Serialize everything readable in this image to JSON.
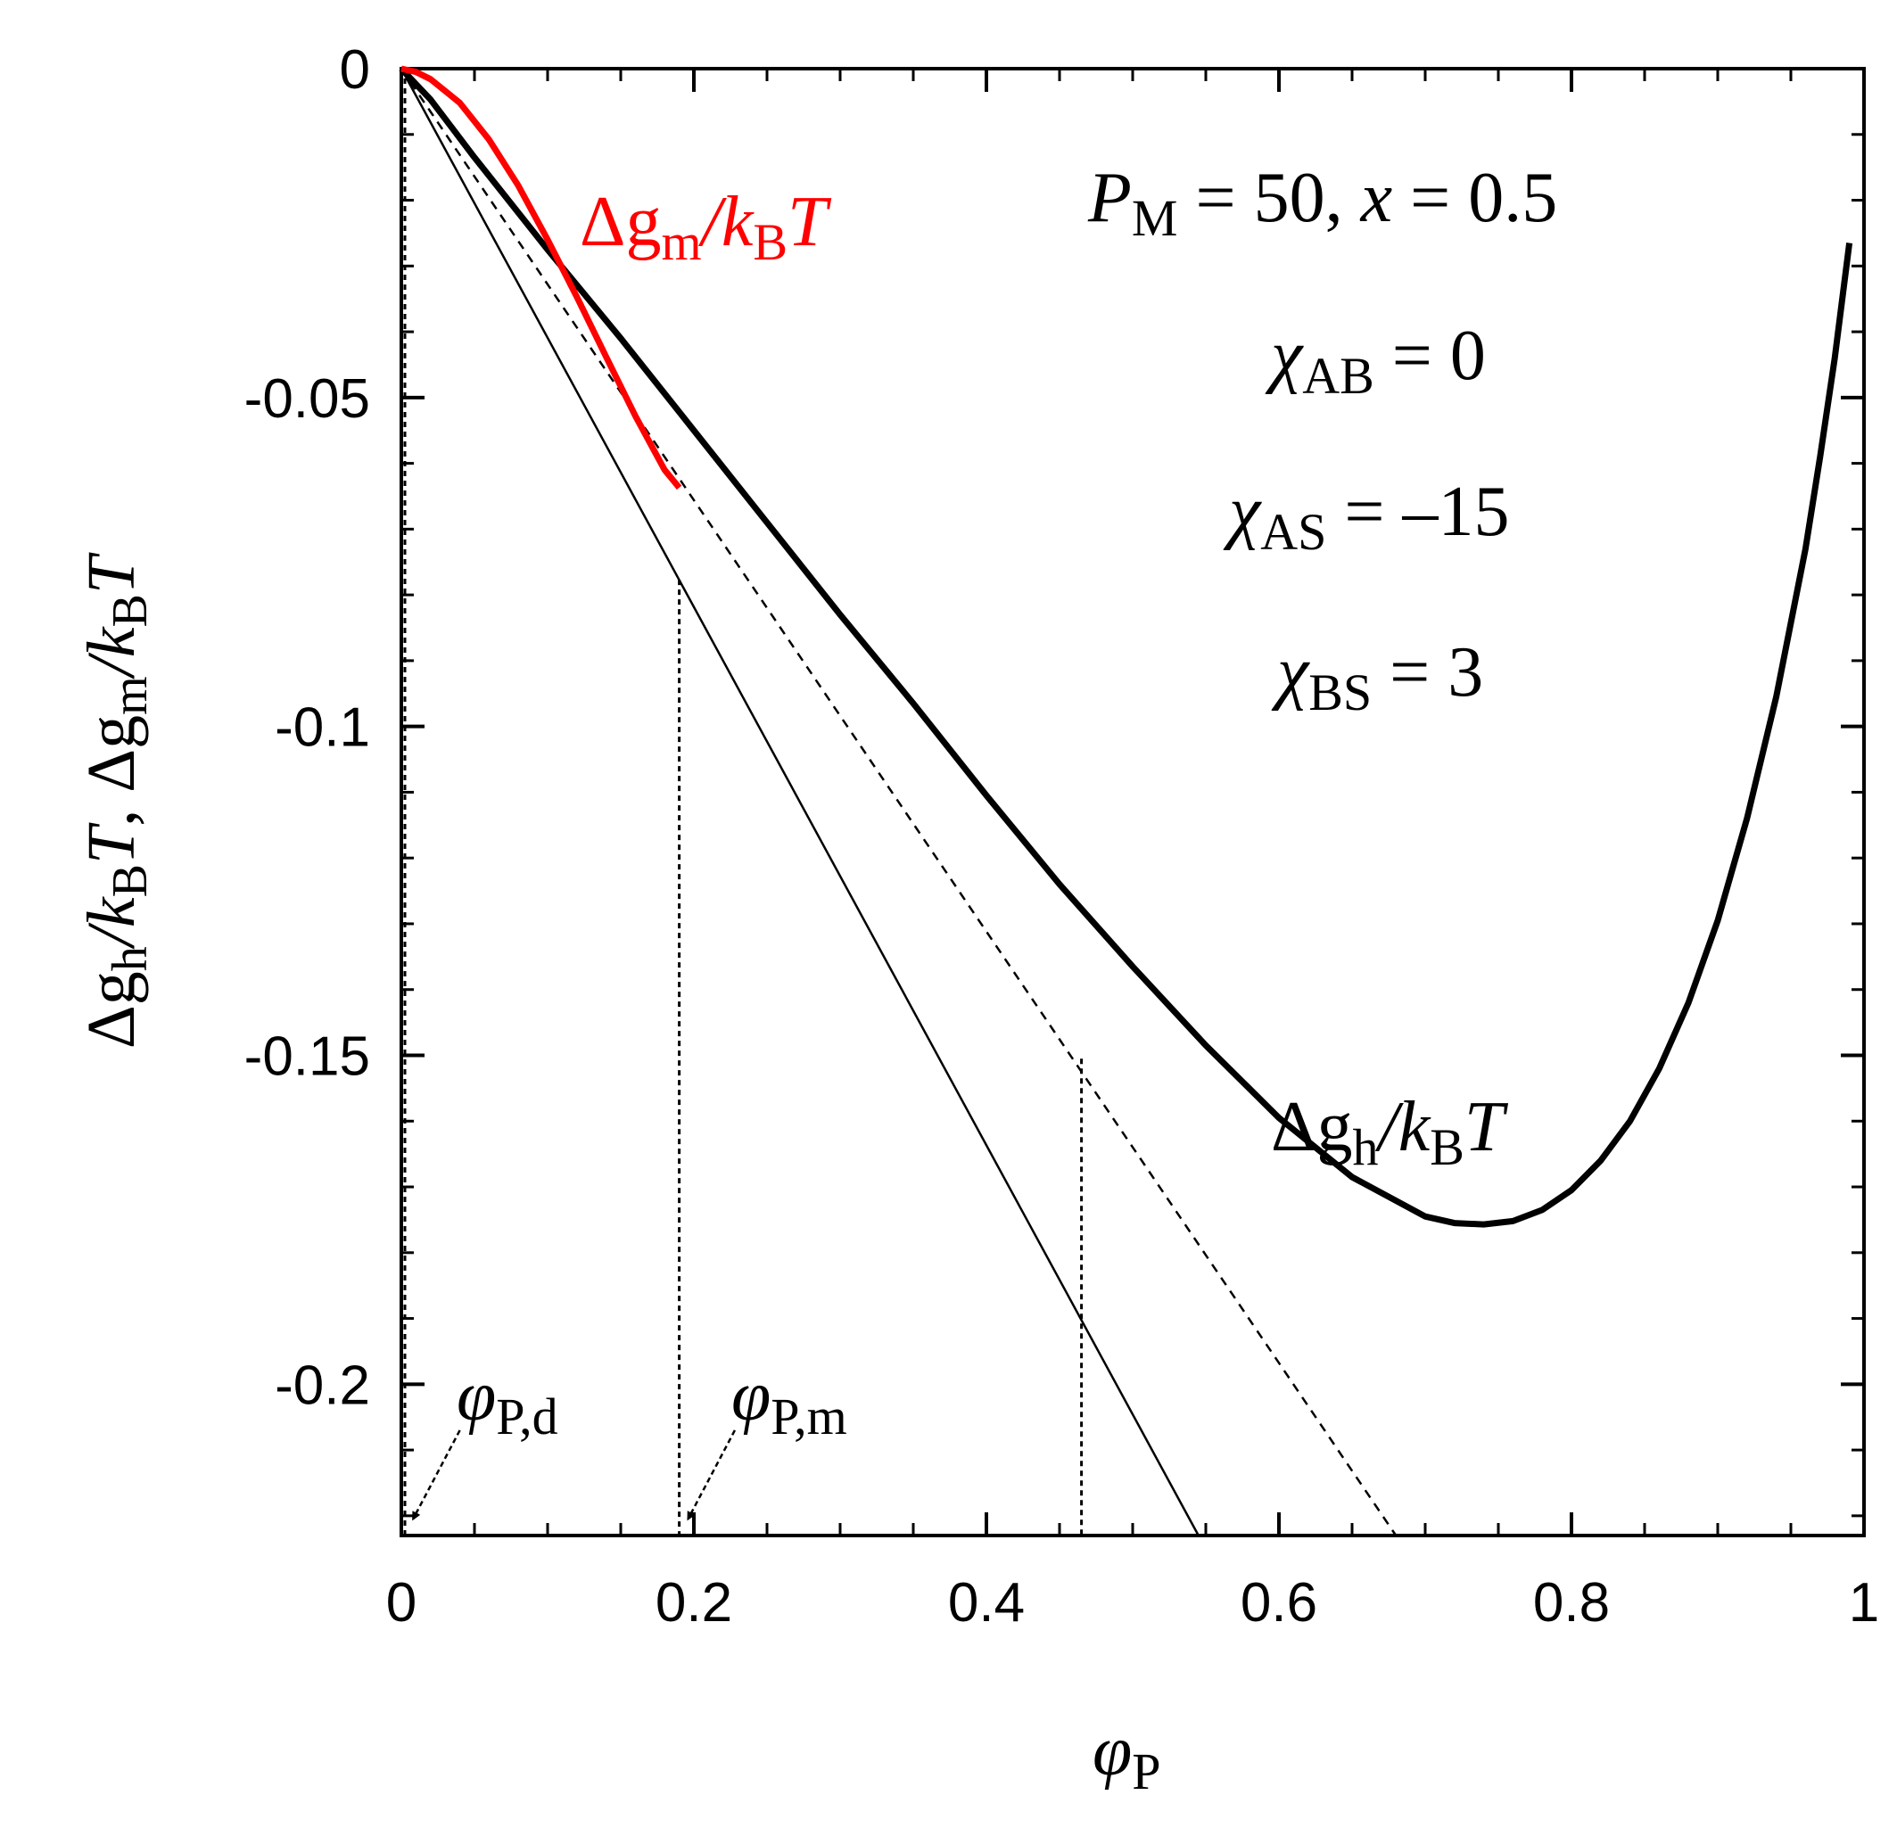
{
  "chart_data": {
    "type": "line",
    "xlabel": {
      "sym": "φ",
      "sub": "P"
    },
    "ylabel": {
      "p1": "Δg",
      "s1": "h",
      "p2": "/",
      "p3": "k",
      "s3": "B",
      "p4": "T",
      "p5": ",  Δg",
      "s5": "m",
      "p6": "/",
      "p7": "k",
      "s7": "B",
      "p8": "T"
    },
    "xlim": [
      0,
      1
    ],
    "ylim": [
      -0.223,
      0
    ],
    "x_ticks": [
      {
        "v": 0,
        "label": "0"
      },
      {
        "v": 0.2,
        "label": "0.2"
      },
      {
        "v": 0.4,
        "label": "0.4"
      },
      {
        "v": 0.6,
        "label": "0.6"
      },
      {
        "v": 0.8,
        "label": "0.8"
      },
      {
        "v": 1,
        "label": "1"
      }
    ],
    "x_minor_step": 0.05,
    "y_ticks": [
      {
        "v": 0,
        "label": "0"
      },
      {
        "v": -0.05,
        "label": "-0.05"
      },
      {
        "v": -0.1,
        "label": "-0.1"
      },
      {
        "v": -0.15,
        "label": "-0.15"
      },
      {
        "v": -0.2,
        "label": "-0.2"
      }
    ],
    "y_minor_step": 0.01,
    "params": {
      "pm": {
        "sym": "P",
        "sub": "M",
        "rest": " = 50,  ",
        "x": "x",
        "xval": " = 0.5"
      },
      "chi_ab": {
        "sym": "χ",
        "sub": "AB",
        "rest": " = 0"
      },
      "chi_as": {
        "sym": "χ",
        "sub": "AS",
        "rest": " = –15"
      },
      "chi_bs": {
        "sym": "χ",
        "sub": "BS",
        "rest": " = 3"
      }
    },
    "labels": {
      "gm": {
        "p1": "Δg",
        "s1": "m",
        "p2": "/",
        "p3": "k",
        "s3": "B",
        "p4": "T"
      },
      "gh": {
        "p1": "Δg",
        "s1": "h",
        "p2": "/",
        "p3": "k",
        "s3": "B",
        "p4": "T"
      },
      "phi_pd": {
        "sym": "φ",
        "sub": "P,d"
      },
      "phi_pm": {
        "sym": "φ",
        "sub": "P,m"
      }
    },
    "series": [
      {
        "name": "Δg_h/k_BT",
        "color": "#000000",
        "style": "thick",
        "x": [
          0,
          0.02,
          0.05,
          0.1,
          0.15,
          0.2,
          0.25,
          0.3,
          0.35,
          0.4,
          0.45,
          0.5,
          0.55,
          0.6,
          0.65,
          0.7,
          0.72,
          0.74,
          0.76,
          0.78,
          0.8,
          0.82,
          0.84,
          0.86,
          0.88,
          0.9,
          0.92,
          0.94,
          0.96,
          0.97,
          0.98,
          0.99
        ],
        "y": [
          0,
          -0.0047,
          -0.0135,
          -0.0275,
          -0.041,
          -0.055,
          -0.069,
          -0.083,
          -0.0965,
          -0.1105,
          -0.124,
          -0.1365,
          -0.1485,
          -0.1595,
          -0.1685,
          -0.1745,
          -0.1755,
          -0.1757,
          -0.1752,
          -0.1735,
          -0.1705,
          -0.166,
          -0.16,
          -0.152,
          -0.142,
          -0.1295,
          -0.114,
          -0.0955,
          -0.073,
          -0.059,
          -0.044,
          -0.0265
        ]
      },
      {
        "name": "Δg_m/k_BT",
        "color": "#ff0000",
        "style": "thick",
        "x": [
          0,
          0.01,
          0.02,
          0.04,
          0.06,
          0.08,
          0.1,
          0.12,
          0.14,
          0.16,
          0.18,
          0.19
        ],
        "y": [
          0,
          -0.0005,
          -0.0016,
          -0.0052,
          -0.0108,
          -0.0178,
          -0.026,
          -0.0347,
          -0.0438,
          -0.0528,
          -0.061,
          -0.0637
        ]
      },
      {
        "name": "tangent",
        "color": "#000000",
        "style": "thin",
        "x": [
          0,
          0.545
        ],
        "y": [
          0,
          -0.223
        ]
      },
      {
        "name": "slope-line",
        "color": "#000000",
        "style": "dashed",
        "x": [
          0,
          0.68
        ],
        "y": [
          0,
          -0.223
        ]
      }
    ],
    "markers": [
      {
        "x": 0,
        "y_top": 0,
        "style": "dotted"
      },
      {
        "x": 0.19,
        "y_top": -0.0777,
        "style": "dotted"
      },
      {
        "x": 0.465,
        "y_top": -0.1505,
        "style": "dotted"
      }
    ],
    "arrows": [
      {
        "to": "phi_pd",
        "from_xy": [
          0.04,
          -0.207
        ],
        "to_xy": [
          0.008,
          -0.2205
        ]
      },
      {
        "to": "phi_pm",
        "from_xy": [
          0.228,
          -0.207
        ],
        "to_xy": [
          0.196,
          -0.2205
        ]
      }
    ]
  }
}
